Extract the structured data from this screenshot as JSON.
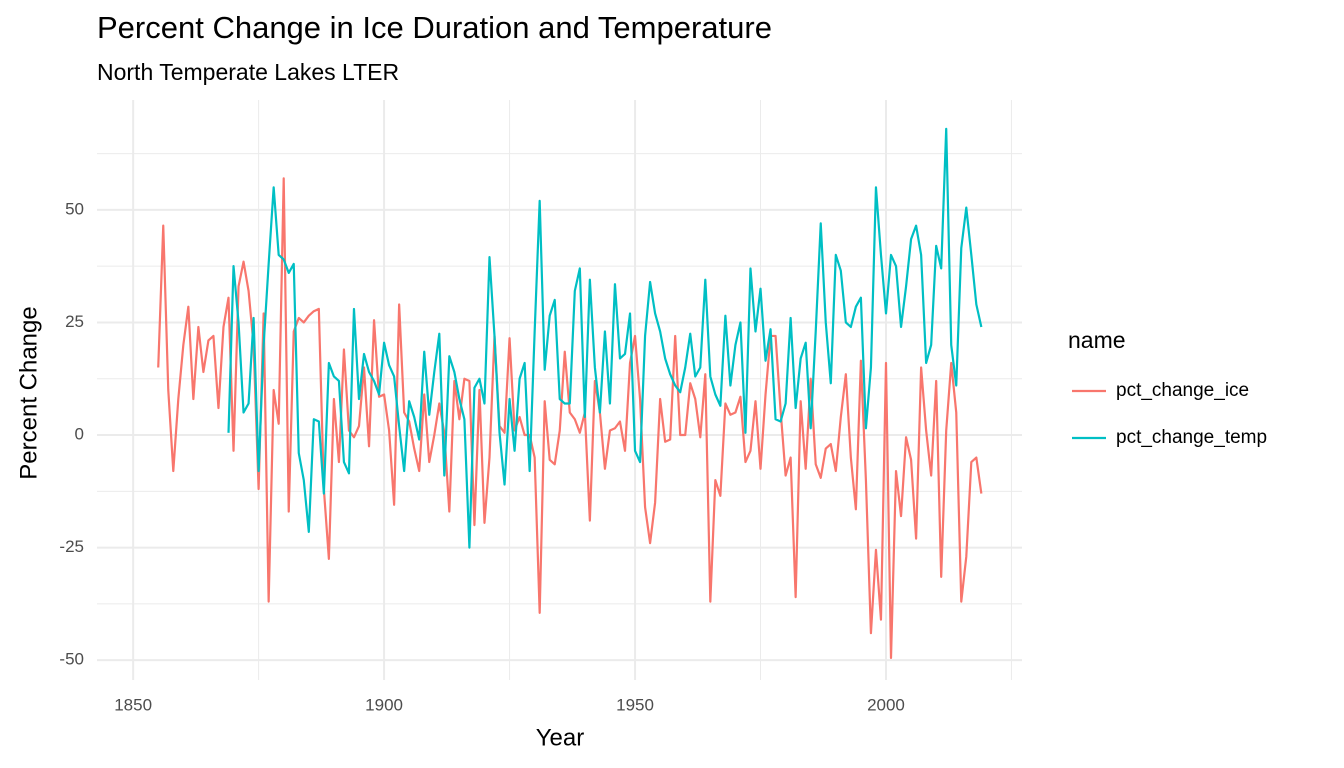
{
  "chart_data": {
    "type": "line",
    "title": "Percent Change in Ice Duration and Temperature",
    "subtitle": "North Temperate Lakes LTER",
    "x_label": "Year",
    "y_label": "Percent Change",
    "legend_title": "name",
    "legend_position": "right",
    "grid": true,
    "xlim": [
      1842.8,
      2027.1
    ],
    "xticks": [
      1850,
      1900,
      1950,
      2000
    ],
    "minor_xticks": [
      1875,
      1925,
      1975,
      2025
    ],
    "ylim": [
      -54.4,
      74.4
    ],
    "yticks": [
      -50,
      -25,
      0,
      25,
      50
    ],
    "minor_yticks": [
      -37.5,
      -12.5,
      12.5,
      37.5,
      62.5
    ],
    "x": [
      1855,
      1856,
      1857,
      1858,
      1859,
      1860,
      1861,
      1862,
      1863,
      1864,
      1865,
      1866,
      1867,
      1868,
      1869,
      1870,
      1871,
      1872,
      1873,
      1874,
      1875,
      1876,
      1877,
      1878,
      1879,
      1880,
      1881,
      1882,
      1883,
      1884,
      1885,
      1886,
      1887,
      1888,
      1889,
      1890,
      1891,
      1892,
      1893,
      1894,
      1895,
      1896,
      1897,
      1898,
      1899,
      1900,
      1901,
      1902,
      1903,
      1904,
      1905,
      1906,
      1907,
      1908,
      1909,
      1910,
      1911,
      1912,
      1913,
      1914,
      1915,
      1916,
      1917,
      1918,
      1919,
      1920,
      1921,
      1922,
      1923,
      1924,
      1925,
      1926,
      1927,
      1928,
      1929,
      1930,
      1931,
      1932,
      1933,
      1934,
      1935,
      1936,
      1937,
      1938,
      1939,
      1940,
      1941,
      1942,
      1943,
      1944,
      1945,
      1946,
      1947,
      1948,
      1949,
      1950,
      1951,
      1952,
      1953,
      1954,
      1955,
      1956,
      1957,
      1958,
      1959,
      1960,
      1961,
      1962,
      1963,
      1964,
      1965,
      1966,
      1967,
      1968,
      1969,
      1970,
      1971,
      1972,
      1973,
      1974,
      1975,
      1976,
      1977,
      1978,
      1979,
      1980,
      1981,
      1982,
      1983,
      1984,
      1985,
      1986,
      1987,
      1988,
      1989,
      1990,
      1991,
      1992,
      1993,
      1994,
      1995,
      1996,
      1997,
      1998,
      1999,
      2000,
      2001,
      2002,
      2003,
      2004,
      2005,
      2006,
      2007,
      2008,
      2009,
      2010,
      2011,
      2012,
      2013,
      2014,
      2015,
      2016,
      2017,
      2018,
      2019
    ],
    "series": [
      {
        "name": "pct_change_ice",
        "color": "#F8766D",
        "values": [
          15,
          46.5,
          10,
          -8,
          8,
          20,
          28.5,
          8,
          24,
          14,
          21,
          22,
          6,
          24,
          30.5,
          -3.5,
          33,
          38.5,
          32,
          20,
          -12,
          27,
          -37,
          10,
          2.5,
          57,
          -17,
          23,
          26,
          25,
          26.5,
          27.5,
          28,
          -12,
          -27.5,
          8,
          -6,
          19,
          1,
          -0.5,
          2,
          15,
          -2.5,
          25.5,
          8.5,
          9,
          1,
          -15.5,
          29,
          5,
          3,
          -3,
          -8,
          9,
          -6,
          0,
          7,
          0.5,
          -17,
          12,
          3.5,
          12.5,
          12,
          -20,
          10,
          -19.5,
          -5,
          22,
          2,
          0.5,
          21.5,
          1,
          4,
          0,
          0,
          -5,
          -39.5,
          7.5,
          -5.5,
          -6.5,
          1,
          18.5,
          5,
          3.5,
          0.5,
          5,
          -19,
          12,
          5,
          -7.5,
          1,
          1.5,
          3,
          -3.5,
          16,
          22,
          8,
          -16,
          -24,
          -15,
          8,
          -1.5,
          -1,
          22,
          0,
          0,
          11.5,
          8,
          -0.5,
          13.5,
          -37,
          -10,
          -13.5,
          7,
          4.5,
          5,
          8.5,
          -6,
          -3.5,
          7.5,
          -7.5,
          9,
          22,
          22,
          5.5,
          -9,
          -5,
          -36,
          7.5,
          -7.5,
          12.5,
          -6.5,
          -9.5,
          -3,
          -2,
          -8,
          4,
          13.5,
          -5,
          -16.5,
          16.5,
          -10,
          -44,
          -25.5,
          -41,
          16,
          -49.5,
          -8,
          -18,
          -0.5,
          -5.5,
          -23,
          15,
          1,
          -9,
          12,
          -31.5,
          1,
          16,
          5,
          -37,
          -27,
          -6,
          -5,
          -13
        ]
      },
      {
        "name": "pct_change_temp",
        "color": "#00BFC4",
        "values": [
          null,
          null,
          null,
          null,
          null,
          null,
          null,
          null,
          null,
          null,
          null,
          null,
          null,
          null,
          0.5,
          37.5,
          25,
          5,
          7,
          26,
          -8,
          20,
          38,
          55,
          40,
          39,
          36,
          38,
          -4,
          -10,
          -21.5,
          3.5,
          3,
          -13,
          16,
          13,
          12,
          -6,
          -8.5,
          28,
          8,
          18,
          14,
          12,
          9,
          20.5,
          15.5,
          13,
          2,
          -8,
          7.5,
          4,
          -1,
          18.5,
          4.5,
          14,
          22.5,
          -9,
          17.5,
          14,
          8,
          3.5,
          -25,
          10.5,
          12.5,
          7,
          39.5,
          22,
          0.5,
          -11,
          8,
          -3.5,
          12.5,
          16,
          -8,
          23,
          52,
          14.5,
          26.5,
          30,
          8,
          7,
          7,
          32,
          37,
          4,
          34.5,
          15,
          5,
          23,
          7,
          33.5,
          17,
          18,
          27,
          -3.5,
          -6,
          22,
          34,
          27,
          23,
          17,
          13.5,
          11,
          9.5,
          15,
          22.5,
          13,
          15,
          34.5,
          13,
          9,
          6.5,
          26.5,
          11,
          20,
          25,
          0.5,
          37,
          23,
          32.5,
          16.5,
          23.5,
          3.5,
          3,
          7,
          26,
          6,
          17,
          20.5,
          1.5,
          23,
          47,
          25,
          11.5,
          40,
          36.5,
          25,
          24,
          28.5,
          30.5,
          1.5,
          15,
          55,
          40,
          27,
          40,
          37.5,
          24,
          33,
          43.5,
          46.5,
          40,
          16,
          20,
          42,
          37,
          68,
          20,
          11,
          41.5,
          50.5,
          40,
          29,
          24
        ]
      }
    ]
  }
}
